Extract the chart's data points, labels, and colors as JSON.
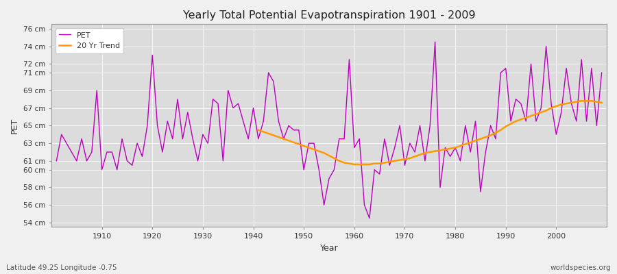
{
  "title": "Yearly Total Potential Evapotranspiration 1901 - 2009",
  "xlabel": "Year",
  "ylabel": "PET",
  "footnote_left": "Latitude 49.25 Longitude -0.75",
  "footnote_right": "worldspecies.org",
  "pet_color": "#bb00bb",
  "trend_color": "#ff9900",
  "bg_color": "#f0f0f0",
  "plot_bg_color": "#dcdcdc",
  "grid_color": "#f5f5f5",
  "ylim": [
    53.5,
    76.5
  ],
  "yticks": [
    54,
    56,
    58,
    60,
    61,
    63,
    65,
    67,
    69,
    71,
    72,
    74,
    76
  ],
  "xticks": [
    1910,
    1920,
    1930,
    1940,
    1950,
    1960,
    1970,
    1980,
    1990,
    2000
  ],
  "xlim": [
    1900,
    2010
  ],
  "years": [
    1901,
    1902,
    1903,
    1904,
    1905,
    1906,
    1907,
    1908,
    1909,
    1910,
    1911,
    1912,
    1913,
    1914,
    1915,
    1916,
    1917,
    1918,
    1919,
    1920,
    1921,
    1922,
    1923,
    1924,
    1925,
    1926,
    1927,
    1928,
    1929,
    1930,
    1931,
    1932,
    1933,
    1934,
    1935,
    1936,
    1937,
    1938,
    1939,
    1940,
    1941,
    1942,
    1943,
    1944,
    1945,
    1946,
    1947,
    1948,
    1949,
    1950,
    1951,
    1952,
    1953,
    1954,
    1955,
    1956,
    1957,
    1958,
    1959,
    1960,
    1961,
    1962,
    1963,
    1964,
    1965,
    1966,
    1967,
    1968,
    1969,
    1970,
    1971,
    1972,
    1973,
    1974,
    1975,
    1976,
    1977,
    1978,
    1979,
    1980,
    1981,
    1982,
    1983,
    1984,
    1985,
    1986,
    1987,
    1988,
    1989,
    1990,
    1991,
    1992,
    1993,
    1994,
    1995,
    1996,
    1997,
    1998,
    1999,
    2000,
    2001,
    2002,
    2003,
    2004,
    2005,
    2006,
    2007,
    2008,
    2009
  ],
  "pet": [
    61.0,
    64.0,
    63.0,
    62.0,
    61.0,
    63.5,
    61.0,
    62.0,
    69.0,
    60.0,
    62.0,
    62.0,
    60.0,
    63.5,
    61.0,
    60.5,
    63.0,
    61.5,
    65.0,
    73.0,
    65.0,
    62.0,
    65.5,
    63.5,
    68.0,
    63.5,
    66.5,
    63.5,
    61.0,
    64.0,
    63.0,
    68.0,
    67.5,
    61.0,
    69.0,
    67.0,
    67.5,
    65.5,
    63.5,
    67.0,
    63.5,
    65.5,
    71.0,
    70.0,
    65.5,
    63.5,
    65.0,
    64.5,
    64.5,
    60.0,
    63.0,
    63.0,
    60.0,
    56.0,
    59.0,
    60.0,
    63.5,
    63.5,
    72.5,
    62.5,
    63.5,
    56.0,
    54.5,
    60.0,
    59.5,
    63.5,
    60.5,
    62.5,
    65.0,
    60.5,
    63.0,
    62.0,
    65.0,
    61.0,
    65.0,
    74.5,
    58.0,
    62.5,
    61.5,
    62.5,
    61.0,
    65.0,
    62.0,
    65.5,
    57.5,
    62.0,
    65.0,
    63.5,
    71.0,
    71.5,
    65.5,
    68.0,
    67.5,
    65.5,
    72.0,
    65.5,
    67.0,
    74.0,
    67.5,
    64.0,
    66.5,
    71.5,
    67.5,
    65.5,
    72.5,
    65.5,
    71.5,
    65.0,
    71.0
  ],
  "trend_years": [
    1941,
    1942,
    1943,
    1944,
    1945,
    1946,
    1947,
    1948,
    1949,
    1950,
    1951,
    1952,
    1953,
    1954,
    1955,
    1956,
    1957,
    1958,
    1959,
    1960,
    1961,
    1962,
    1963,
    1964,
    1965,
    1966,
    1967,
    1968,
    1969,
    1970,
    1971,
    1972,
    1973,
    1974,
    1975,
    1976,
    1977,
    1978,
    1979,
    1980,
    1981,
    1982,
    1983,
    1984,
    1985,
    1986,
    1987,
    1988,
    1989,
    1990,
    1991,
    1992,
    1993,
    1994,
    1995,
    1996,
    1997,
    1998,
    1999,
    2000,
    2001,
    2002,
    2003,
    2004,
    2005,
    2006,
    2007,
    2008,
    2009
  ],
  "trend": [
    64.5,
    64.3,
    64.1,
    63.9,
    63.7,
    63.5,
    63.3,
    63.1,
    62.9,
    62.7,
    62.5,
    62.3,
    62.1,
    61.9,
    61.6,
    61.3,
    61.0,
    60.8,
    60.7,
    60.6,
    60.6,
    60.6,
    60.6,
    60.7,
    60.7,
    60.8,
    60.9,
    61.0,
    61.1,
    61.2,
    61.3,
    61.5,
    61.7,
    61.9,
    62.0,
    62.1,
    62.2,
    62.3,
    62.4,
    62.5,
    62.7,
    62.9,
    63.1,
    63.3,
    63.5,
    63.7,
    63.9,
    64.2,
    64.5,
    64.9,
    65.2,
    65.5,
    65.7,
    65.9,
    66.1,
    66.3,
    66.5,
    66.7,
    67.0,
    67.2,
    67.4,
    67.5,
    67.6,
    67.7,
    67.8,
    67.8,
    67.8,
    67.7,
    67.6
  ]
}
